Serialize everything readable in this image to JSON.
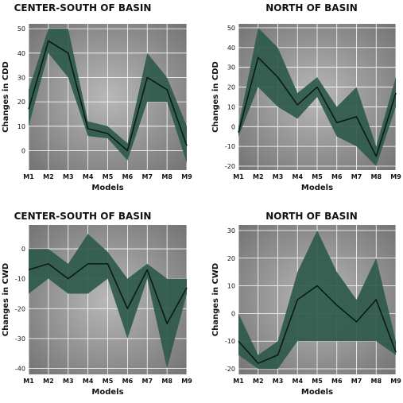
{
  "colors": {
    "band": "#2f5a4b",
    "line": "#0b1a14",
    "bg_outer": "#777777",
    "bg_inner": "#b5b5b5",
    "grid": "#ffffff"
  },
  "chart_data": [
    {
      "type": "line",
      "title": "CENTER-SOUTH OF BASIN",
      "xlabel": "Models",
      "ylabel": "Changes in CDD",
      "categories": [
        "M1",
        "M2",
        "M3",
        "M4",
        "M5",
        "M6",
        "M7",
        "M8",
        "M9"
      ],
      "ylim": [
        -8,
        52
      ],
      "yticks": [
        0,
        10,
        20,
        30,
        40,
        50
      ],
      "series": [
        {
          "role": "upper",
          "values": [
            25,
            50,
            50,
            12,
            10,
            3,
            40,
            30,
            10
          ]
        },
        {
          "role": "mean",
          "values": [
            17,
            45,
            40,
            9,
            7,
            0,
            30,
            25,
            2
          ]
        },
        {
          "role": "lower",
          "values": [
            10,
            40,
            30,
            6,
            5,
            -4,
            20,
            20,
            -5
          ]
        }
      ],
      "grid": true
    },
    {
      "type": "line",
      "title": "NORTH OF BASIN",
      "xlabel": "Models",
      "ylabel": "Changes in CDD",
      "categories": [
        "M1",
        "M2",
        "M3",
        "M4",
        "M5",
        "M6",
        "M7",
        "M8",
        "M9"
      ],
      "ylim": [
        -22,
        52
      ],
      "yticks": [
        -20,
        -10,
        0,
        10,
        20,
        30,
        40,
        50
      ],
      "series": [
        {
          "role": "upper",
          "values": [
            0,
            50,
            40,
            17,
            25,
            10,
            20,
            -10,
            25
          ]
        },
        {
          "role": "mean",
          "values": [
            -3,
            35,
            25,
            11,
            20,
            2,
            5,
            -15,
            17
          ]
        },
        {
          "role": "lower",
          "values": [
            -5,
            20,
            10,
            4,
            15,
            -5,
            -10,
            -20,
            10
          ]
        }
      ],
      "grid": true
    },
    {
      "type": "line",
      "title": "CENTER-SOUTH OF BASIN",
      "xlabel": "Models",
      "ylabel": "Changes in CWD",
      "categories": [
        "M1",
        "M2",
        "M3",
        "M4",
        "M5",
        "M6",
        "M7",
        "M8",
        "M9"
      ],
      "ylim": [
        -42,
        8
      ],
      "yticks": [
        -40,
        -30,
        -20,
        -10,
        0
      ],
      "series": [
        {
          "role": "upper",
          "values": [
            0,
            0,
            -5,
            5,
            -1,
            -10,
            -5,
            -10,
            -10
          ]
        },
        {
          "role": "mean",
          "values": [
            -7,
            -5,
            -10,
            -5,
            -5,
            -20,
            -7,
            -25,
            -13
          ]
        },
        {
          "role": "lower",
          "values": [
            -15,
            -10,
            -15,
            -15,
            -10,
            -30,
            -10,
            -40,
            -15
          ]
        }
      ],
      "grid": true
    },
    {
      "type": "line",
      "title": "NORTH OF BASIN",
      "xlabel": "Models",
      "ylabel": "Changes in CWD",
      "categories": [
        "M1",
        "M2",
        "M3",
        "M4",
        "M5",
        "M6",
        "M7",
        "M8",
        "M9"
      ],
      "ylim": [
        -22,
        32
      ],
      "yticks": [
        -20,
        -10,
        0,
        10,
        20,
        30
      ],
      "series": [
        {
          "role": "upper",
          "values": [
            0,
            -15,
            -10,
            15,
            30,
            15,
            5,
            20,
            -10
          ]
        },
        {
          "role": "mean",
          "values": [
            -10,
            -18,
            -15,
            5,
            10,
            3,
            -3,
            5,
            -14
          ]
        },
        {
          "role": "lower",
          "values": [
            -15,
            -20,
            -20,
            -10,
            -10,
            -10,
            -10,
            -10,
            -15
          ]
        }
      ],
      "grid": true
    }
  ]
}
